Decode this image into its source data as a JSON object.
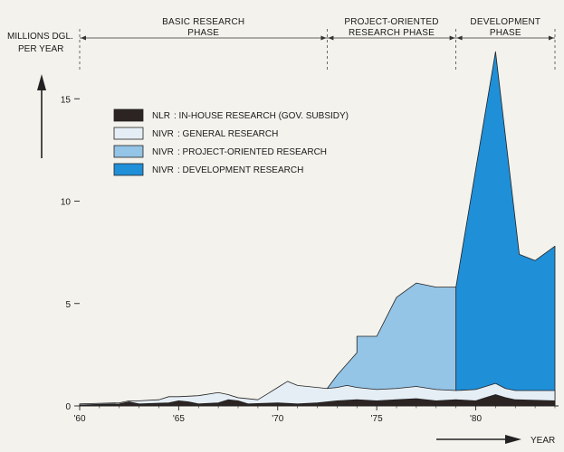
{
  "chart_data": {
    "type": "area",
    "ylabel_lines": [
      "MILLIONS DGL.",
      "PER YEAR"
    ],
    "xlabel": "YEAR",
    "x_range": [
      1960,
      1984
    ],
    "ylim": [
      0,
      18.5
    ],
    "x_ticks": [
      {
        "value": 1960,
        "label": "'60"
      },
      {
        "value": 1965,
        "label": "'65"
      },
      {
        "value": 1970,
        "label": "'70"
      },
      {
        "value": 1975,
        "label": "'75"
      },
      {
        "value": 1980,
        "label": "'80"
      }
    ],
    "y_ticks": [
      0,
      5,
      10,
      15
    ],
    "phases": [
      {
        "lines": [
          "BASIC RESEARCH",
          "PHASE"
        ],
        "start": 1960,
        "end": 1972.5
      },
      {
        "lines": [
          "PROJECT-ORIENTED",
          "RESEARCH PHASE"
        ],
        "start": 1972.5,
        "end": 1979
      },
      {
        "lines": [
          "DEVELOPMENT",
          "PHASE"
        ],
        "start": 1979,
        "end": 1984
      }
    ],
    "legend": [
      {
        "label": "NLR",
        "desc": ": IN-HOUSE RESEARCH (GOV. SUBSIDY)",
        "color": "#2b2422"
      },
      {
        "label": "NIVR",
        "desc": ": GENERAL RESEARCH",
        "color": "#e6eef5"
      },
      {
        "label": "NIVR",
        "desc": ": PROJECT-ORIENTED RESEARCH",
        "color": "#94c4e6"
      },
      {
        "label": "NIVR",
        "desc": ": DEVELOPMENT RESEARCH",
        "color": "#1f8fd8"
      }
    ],
    "series": [
      {
        "name": "NLR : IN-HOUSE RESEARCH (GOV. SUBSIDY)",
        "color": "#2b2422",
        "points": [
          [
            1960,
            0.05
          ],
          [
            1962,
            0.1
          ],
          [
            1962.5,
            0.2
          ],
          [
            1963,
            0.1
          ],
          [
            1964.5,
            0.15
          ],
          [
            1965,
            0.25
          ],
          [
            1965.5,
            0.2
          ],
          [
            1966,
            0.1
          ],
          [
            1967,
            0.15
          ],
          [
            1967.5,
            0.3
          ],
          [
            1968,
            0.25
          ],
          [
            1968.5,
            0.1
          ],
          [
            1970,
            0.15
          ],
          [
            1971,
            0.1
          ],
          [
            1972,
            0.15
          ],
          [
            1973,
            0.25
          ],
          [
            1974,
            0.3
          ],
          [
            1975,
            0.25
          ],
          [
            1976,
            0.3
          ],
          [
            1977,
            0.35
          ],
          [
            1978,
            0.25
          ],
          [
            1979,
            0.3
          ],
          [
            1980,
            0.25
          ],
          [
            1980.5,
            0.4
          ],
          [
            1981,
            0.55
          ],
          [
            1981.5,
            0.4
          ],
          [
            1982,
            0.3
          ],
          [
            1984,
            0.25
          ]
        ]
      },
      {
        "name": "NIVR : GENERAL RESEARCH",
        "color": "#e6eef5",
        "points": [
          [
            1960,
            0.1
          ],
          [
            1962,
            0.15
          ],
          [
            1962.5,
            0.25
          ],
          [
            1963,
            0.25
          ],
          [
            1964,
            0.3
          ],
          [
            1964.5,
            0.45
          ],
          [
            1965,
            0.45
          ],
          [
            1966,
            0.5
          ],
          [
            1967,
            0.65
          ],
          [
            1967.5,
            0.55
          ],
          [
            1968,
            0.4
          ],
          [
            1969,
            0.3
          ],
          [
            1969.5,
            0.6
          ],
          [
            1970,
            0.9
          ],
          [
            1970.5,
            1.2
          ],
          [
            1971,
            1.0
          ],
          [
            1972,
            0.9
          ],
          [
            1972.5,
            0.85
          ],
          [
            1973,
            0.9
          ],
          [
            1973.5,
            1.0
          ],
          [
            1974,
            0.9
          ],
          [
            1975,
            0.8
          ],
          [
            1976,
            0.85
          ],
          [
            1977,
            0.95
          ],
          [
            1978,
            0.8
          ],
          [
            1979,
            0.75
          ],
          [
            1980,
            0.8
          ],
          [
            1980.5,
            0.95
          ],
          [
            1981,
            1.1
          ],
          [
            1981.5,
            0.85
          ],
          [
            1982,
            0.75
          ],
          [
            1984,
            0.75
          ]
        ]
      },
      {
        "name": "NIVR : PROJECT-ORIENTED RESEARCH",
        "color": "#94c4e6",
        "points": [
          [
            1972.5,
            0.85
          ],
          [
            1973,
            1.5
          ],
          [
            1974,
            2.6
          ],
          [
            1974,
            3.4
          ],
          [
            1975,
            3.4
          ],
          [
            1976,
            5.3
          ],
          [
            1977,
            6.0
          ],
          [
            1978,
            5.8
          ],
          [
            1979,
            5.8
          ]
        ]
      },
      {
        "name": "NIVR : DEVELOPMENT RESEARCH",
        "color": "#1f8fd8",
        "points": [
          [
            1979,
            5.8
          ],
          [
            1981,
            17.3
          ],
          [
            1982.2,
            7.4
          ],
          [
            1983,
            7.1
          ],
          [
            1984,
            7.8
          ]
        ]
      }
    ]
  }
}
